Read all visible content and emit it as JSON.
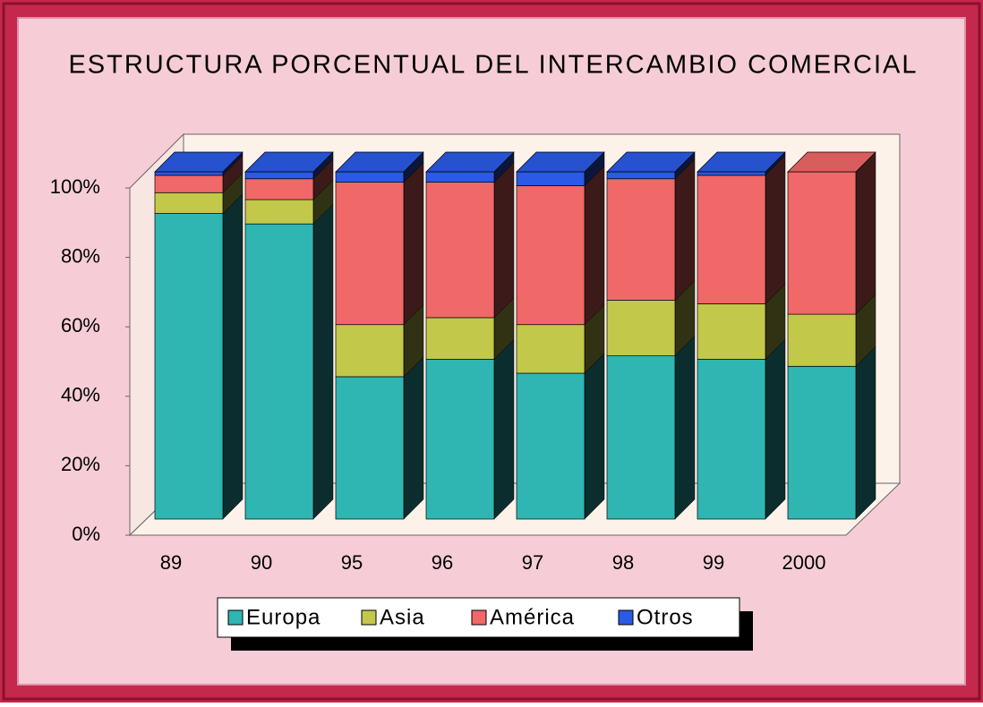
{
  "chart_data": {
    "type": "bar",
    "stacked": true,
    "percent": true,
    "title": "ESTRUCTURA PORCENTUAL DEL INTERCAMBIO COMERCIAL",
    "categories": [
      "89",
      "90",
      "95",
      "96",
      "97",
      "98",
      "99",
      "2000"
    ],
    "series": [
      {
        "name": "Europa",
        "color": "#2fb5b2",
        "values": [
          88,
          85,
          41,
          46,
          42,
          47,
          46,
          44
        ]
      },
      {
        "name": "Asia",
        "color": "#c2c84a",
        "values": [
          6,
          7,
          15,
          12,
          14,
          16,
          16,
          15
        ]
      },
      {
        "name": "América",
        "color": "#f06868",
        "values": [
          5,
          6,
          41,
          39,
          40,
          35,
          37,
          41
        ]
      },
      {
        "name": "Otros",
        "color": "#2a5ae6",
        "values": [
          1,
          2,
          3,
          3,
          4,
          2,
          1,
          0
        ]
      }
    ],
    "ylim": [
      0,
      100
    ],
    "yticks": [
      {
        "value": 0,
        "label": "0%"
      },
      {
        "value": 20,
        "label": "20%"
      },
      {
        "value": 40,
        "label": "40%"
      },
      {
        "value": 60,
        "label": "60%"
      },
      {
        "value": 80,
        "label": "80%"
      },
      {
        "value": 100,
        "label": "100%"
      }
    ],
    "legend": "bottom"
  }
}
